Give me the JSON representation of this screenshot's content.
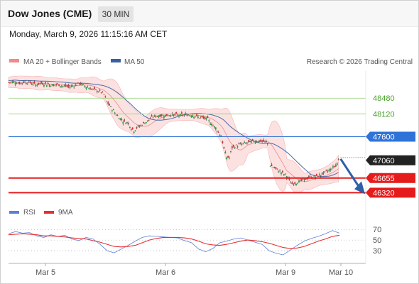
{
  "header": {
    "title": "Dow Jones (CME)",
    "timeframe": "30 MIN",
    "datetime": "Monday, March 9, 2026 11:15:16 AM CET"
  },
  "legend": {
    "bollinger": "MA 20 + Bollinger Bands",
    "ma50": "MA 50",
    "copyright": "Research © 2026 Trading Central"
  },
  "rsi_legend": {
    "rsi": "RSI",
    "ma": "9MA"
  },
  "colors": {
    "green_line": "#8fce6e",
    "blue_line": "#2f73d8",
    "red_line": "#e51c1c",
    "dark_tag": "#222222",
    "bollinger_fill": "#fbd7d7",
    "ma50": "#4a6aa8",
    "rsi_line": "#5b7fd8",
    "rsi_ma": "#e53030",
    "arrow": "#2f5fa8"
  },
  "chart_data": [
    {
      "type": "candlestick",
      "title": "Dow Jones (CME)",
      "timeframe": "30 MIN",
      "y_range": [
        46100,
        49100
      ],
      "x_ticks": [
        "Mar 5",
        "Mar 6",
        "Mar 9",
        "Mar 10"
      ],
      "levels": [
        {
          "value": 48480,
          "label": "48480",
          "kind": "resistance"
        },
        {
          "value": 48120,
          "label": "48120",
          "kind": "resistance"
        },
        {
          "value": 47600,
          "label": "47600",
          "kind": "pivot"
        },
        {
          "value": 46655,
          "label": "46655",
          "kind": "support"
        },
        {
          "value": 46320,
          "label": "46320",
          "kind": "support"
        }
      ],
      "last_price": 47060,
      "last_price_label": "47060",
      "forecast_arrow": {
        "from": 47060,
        "to": 46320,
        "direction": "down"
      },
      "series": [
        {
          "name": "MA 20 + Bollinger Bands"
        },
        {
          "name": "MA 50"
        }
      ],
      "close_path": [
        [
          0,
          48840
        ],
        [
          4,
          48860
        ],
        [
          8,
          48820
        ],
        [
          12,
          48850
        ],
        [
          16,
          48830
        ],
        [
          20,
          48790
        ],
        [
          24,
          48820
        ],
        [
          28,
          48800
        ],
        [
          32,
          48780
        ],
        [
          36,
          48790
        ],
        [
          40,
          48760
        ],
        [
          44,
          48740
        ],
        [
          48,
          48770
        ],
        [
          52,
          48820
        ],
        [
          56,
          48760
        ],
        [
          60,
          48700
        ],
        [
          64,
          48660
        ],
        [
          68,
          48620
        ],
        [
          70,
          48560
        ],
        [
          72,
          48400
        ],
        [
          76,
          48230
        ],
        [
          80,
          48070
        ],
        [
          84,
          47960
        ],
        [
          88,
          47910
        ],
        [
          90,
          47800
        ],
        [
          92,
          47740
        ],
        [
          94,
          47800
        ],
        [
          98,
          47880
        ],
        [
          102,
          47960
        ],
        [
          106,
          48060
        ],
        [
          110,
          48080
        ],
        [
          114,
          48090
        ],
        [
          118,
          48100
        ],
        [
          122,
          48100
        ],
        [
          126,
          48090
        ],
        [
          130,
          48100
        ],
        [
          134,
          48100
        ],
        [
          138,
          48060
        ],
        [
          142,
          48030
        ],
        [
          146,
          48000
        ],
        [
          148,
          47920
        ],
        [
          150,
          47850
        ],
        [
          152,
          47800
        ],
        [
          154,
          47700
        ],
        [
          156,
          47620
        ],
        [
          158,
          47320
        ],
        [
          160,
          47130
        ],
        [
          162,
          47120
        ],
        [
          164,
          47350
        ],
        [
          168,
          47400
        ],
        [
          172,
          47440
        ],
        [
          176,
          47470
        ],
        [
          180,
          47500
        ],
        [
          184,
          47510
        ],
        [
          188,
          47480
        ],
        [
          190,
          47450
        ]
      ],
      "close_path_2": [
        [
          192,
          46950
        ],
        [
          196,
          46860
        ],
        [
          200,
          46790
        ],
        [
          204,
          46700
        ],
        [
          206,
          46600
        ],
        [
          208,
          46520
        ],
        [
          212,
          46560
        ],
        [
          216,
          46610
        ],
        [
          220,
          46660
        ],
        [
          224,
          46680
        ],
        [
          228,
          46720
        ],
        [
          232,
          46780
        ],
        [
          236,
          46850
        ],
        [
          240,
          46950
        ],
        [
          242,
          47060
        ]
      ]
    },
    {
      "type": "line",
      "title": "RSI",
      "y_range": [
        10,
        85
      ],
      "y_ticks": [
        70,
        50,
        30
      ],
      "series": [
        {
          "name": "RSI",
          "values": [
            62,
            66,
            63,
            64,
            58,
            55,
            60,
            57,
            59,
            52,
            49,
            55,
            52,
            42,
            30,
            26,
            33,
            40,
            48,
            55,
            58,
            57,
            56,
            55,
            54,
            49,
            45,
            33,
            28,
            34,
            45,
            48,
            52,
            54,
            50,
            46,
            42,
            30,
            25,
            22,
            31,
            40,
            48,
            53,
            57,
            62,
            68,
            63
          ]
        },
        {
          "name": "9MA",
          "values": [
            60,
            61,
            62,
            61,
            60,
            58,
            58,
            57,
            56,
            54,
            53,
            52,
            49,
            46,
            42,
            38,
            37,
            38,
            40,
            45,
            50,
            53,
            55,
            55,
            55,
            54,
            52,
            48,
            43,
            41,
            40,
            42,
            45,
            48,
            50,
            49,
            47,
            44,
            40,
            36,
            34,
            35,
            38,
            43,
            48,
            52,
            57,
            59
          ]
        }
      ]
    }
  ]
}
